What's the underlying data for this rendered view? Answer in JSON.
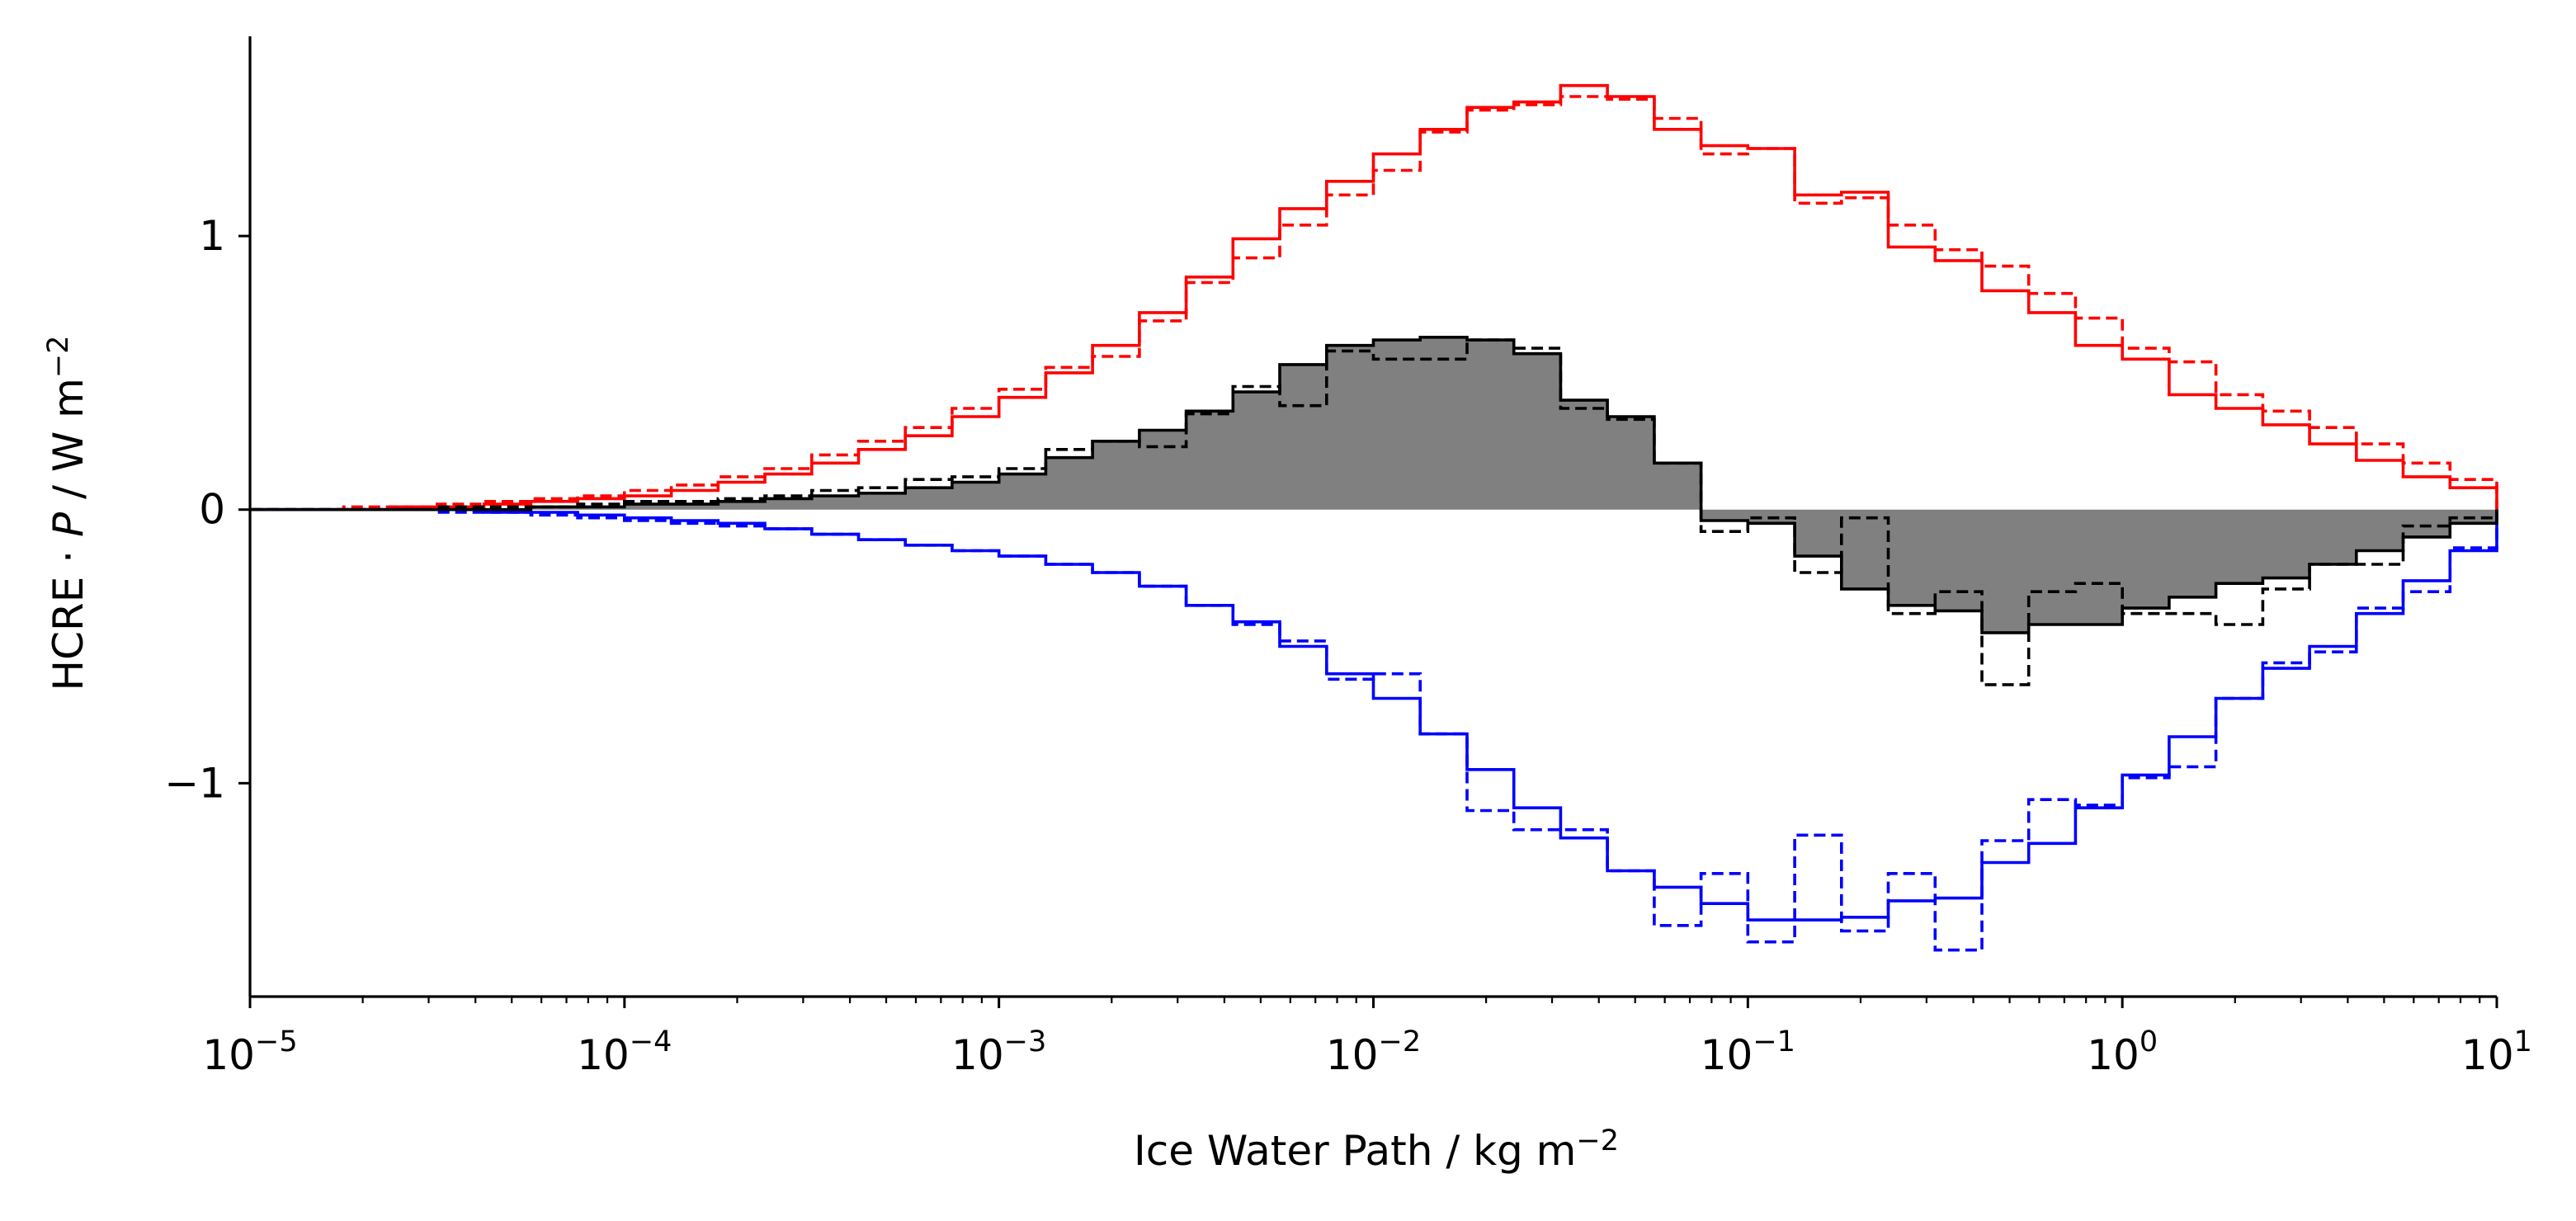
{
  "chart_data": {
    "type": "line",
    "subtype": "step-histogram",
    "title": "",
    "xlabel": {
      "text": "Ice Water Path / kg m",
      "sup": "−2"
    },
    "ylabel": {
      "text_before": "HCRE · ",
      "italic": "P",
      "text_after": " / W m",
      "sup": "−2"
    },
    "xscale": "log",
    "xlim": [
      1e-05,
      10
    ],
    "ylim": [
      -1.78,
      1.73
    ],
    "x_ticks": [
      {
        "value": 1e-05,
        "base": "10",
        "exp": "−5"
      },
      {
        "value": 0.0001,
        "base": "10",
        "exp": "−4"
      },
      {
        "value": 0.001,
        "base": "10",
        "exp": "−3"
      },
      {
        "value": 0.01,
        "base": "10",
        "exp": "−2"
      },
      {
        "value": 0.1,
        "base": "10",
        "exp": "−1"
      },
      {
        "value": 1,
        "base": "10",
        "exp": "0"
      },
      {
        "value": 10,
        "base": "10",
        "exp": "1"
      }
    ],
    "y_ticks": [
      {
        "value": -1,
        "label": "−1"
      },
      {
        "value": 0,
        "label": "0"
      },
      {
        "value": 1,
        "label": "1"
      }
    ],
    "grid": false,
    "legend": "none",
    "bin_edges_log10": [
      -5.0,
      -4.875,
      -4.75,
      -4.625,
      -4.5,
      -4.375,
      -4.25,
      -4.125,
      -4.0,
      -3.875,
      -3.75,
      -3.625,
      -3.5,
      -3.375,
      -3.25,
      -3.125,
      -3.0,
      -2.875,
      -2.75,
      -2.625,
      -2.5,
      -2.375,
      -2.25,
      -2.125,
      -2.0,
      -1.875,
      -1.75,
      -1.625,
      -1.5,
      -1.375,
      -1.25,
      -1.125,
      -1.0,
      -0.875,
      -0.75,
      -0.625,
      -0.5,
      -0.375,
      -0.25,
      -0.125,
      0.0,
      0.125,
      0.25,
      0.375,
      0.5,
      0.625,
      0.75,
      0.875,
      1.0
    ],
    "series": [
      {
        "color": "#ff0000",
        "dash": "solid",
        "fill": false,
        "values": [
          0.0,
          0.0,
          0.0,
          0.01,
          0.01,
          0.02,
          0.03,
          0.04,
          0.05,
          0.07,
          0.1,
          0.13,
          0.17,
          0.22,
          0.27,
          0.34,
          0.41,
          0.5,
          0.6,
          0.72,
          0.85,
          0.99,
          1.1,
          1.2,
          1.3,
          1.39,
          1.47,
          1.49,
          1.55,
          1.51,
          1.39,
          1.33,
          1.32,
          1.15,
          1.16,
          0.96,
          0.91,
          0.8,
          0.72,
          0.6,
          0.55,
          0.42,
          0.37,
          0.31,
          0.24,
          0.18,
          0.12,
          0.08
        ]
      },
      {
        "color": "#ff0000",
        "dash": "dashed",
        "fill": false,
        "values": [
          0.0,
          0.0,
          0.01,
          0.01,
          0.02,
          0.03,
          0.04,
          0.05,
          0.07,
          0.09,
          0.12,
          0.15,
          0.2,
          0.25,
          0.3,
          0.37,
          0.44,
          0.52,
          0.56,
          0.69,
          0.83,
          0.92,
          1.04,
          1.15,
          1.24,
          1.38,
          1.46,
          1.48,
          1.51,
          1.5,
          1.43,
          1.3,
          1.32,
          1.12,
          1.14,
          1.04,
          0.95,
          0.89,
          0.79,
          0.7,
          0.59,
          0.54,
          0.42,
          0.36,
          0.3,
          0.24,
          0.17,
          0.11
        ]
      },
      {
        "color": "#0000ff",
        "dash": "solid",
        "fill": false,
        "values": [
          0.0,
          0.0,
          0.0,
          0.0,
          0.0,
          -0.01,
          -0.01,
          -0.02,
          -0.03,
          -0.04,
          -0.05,
          -0.07,
          -0.09,
          -0.11,
          -0.13,
          -0.15,
          -0.17,
          -0.2,
          -0.23,
          -0.28,
          -0.35,
          -0.41,
          -0.5,
          -0.6,
          -0.69,
          -0.82,
          -0.95,
          -1.09,
          -1.2,
          -1.32,
          -1.38,
          -1.44,
          -1.5,
          -1.5,
          -1.49,
          -1.43,
          -1.42,
          -1.29,
          -1.22,
          -1.09,
          -0.97,
          -0.83,
          -0.69,
          -0.58,
          -0.5,
          -0.38,
          -0.26,
          -0.15
        ]
      },
      {
        "color": "#0000ff",
        "dash": "dashed",
        "fill": false,
        "values": [
          0.0,
          0.0,
          0.0,
          0.0,
          -0.01,
          -0.01,
          -0.02,
          -0.03,
          -0.04,
          -0.05,
          -0.06,
          -0.07,
          -0.09,
          -0.11,
          -0.13,
          -0.15,
          -0.17,
          -0.2,
          -0.23,
          -0.28,
          -0.35,
          -0.42,
          -0.48,
          -0.62,
          -0.6,
          -0.82,
          -1.1,
          -1.17,
          -1.17,
          -1.32,
          -1.52,
          -1.33,
          -1.58,
          -1.19,
          -1.54,
          -1.33,
          -1.61,
          -1.21,
          -1.06,
          -1.08,
          -0.98,
          -0.94,
          -0.69,
          -0.56,
          -0.52,
          -0.36,
          -0.3,
          -0.14
        ]
      },
      {
        "color": "#000000",
        "dash": "solid",
        "fill": true,
        "fill_color": "#808080",
        "values": [
          0.0,
          0.0,
          0.0,
          0.0,
          0.0,
          0.0,
          0.01,
          0.01,
          0.02,
          0.02,
          0.03,
          0.04,
          0.05,
          0.06,
          0.08,
          0.1,
          0.13,
          0.19,
          0.25,
          0.29,
          0.36,
          0.43,
          0.53,
          0.6,
          0.62,
          0.63,
          0.62,
          0.57,
          0.4,
          0.34,
          0.17,
          -0.04,
          -0.05,
          -0.17,
          -0.29,
          -0.35,
          -0.37,
          -0.45,
          -0.42,
          -0.42,
          -0.36,
          -0.32,
          -0.27,
          -0.25,
          -0.2,
          -0.15,
          -0.1,
          -0.05
        ]
      },
      {
        "color": "#000000",
        "dash": "dashed",
        "fill": false,
        "values": [
          0.0,
          0.0,
          0.0,
          0.0,
          0.01,
          0.01,
          0.01,
          0.02,
          0.03,
          0.03,
          0.04,
          0.05,
          0.07,
          0.08,
          0.11,
          0.12,
          0.15,
          0.22,
          0.25,
          0.23,
          0.35,
          0.45,
          0.38,
          0.58,
          0.55,
          0.55,
          0.62,
          0.59,
          0.37,
          0.33,
          0.17,
          -0.08,
          -0.03,
          -0.23,
          -0.03,
          -0.38,
          -0.3,
          -0.64,
          -0.3,
          -0.27,
          -0.38,
          -0.38,
          -0.42,
          -0.29,
          -0.2,
          -0.2,
          -0.06,
          -0.03
        ]
      }
    ]
  }
}
